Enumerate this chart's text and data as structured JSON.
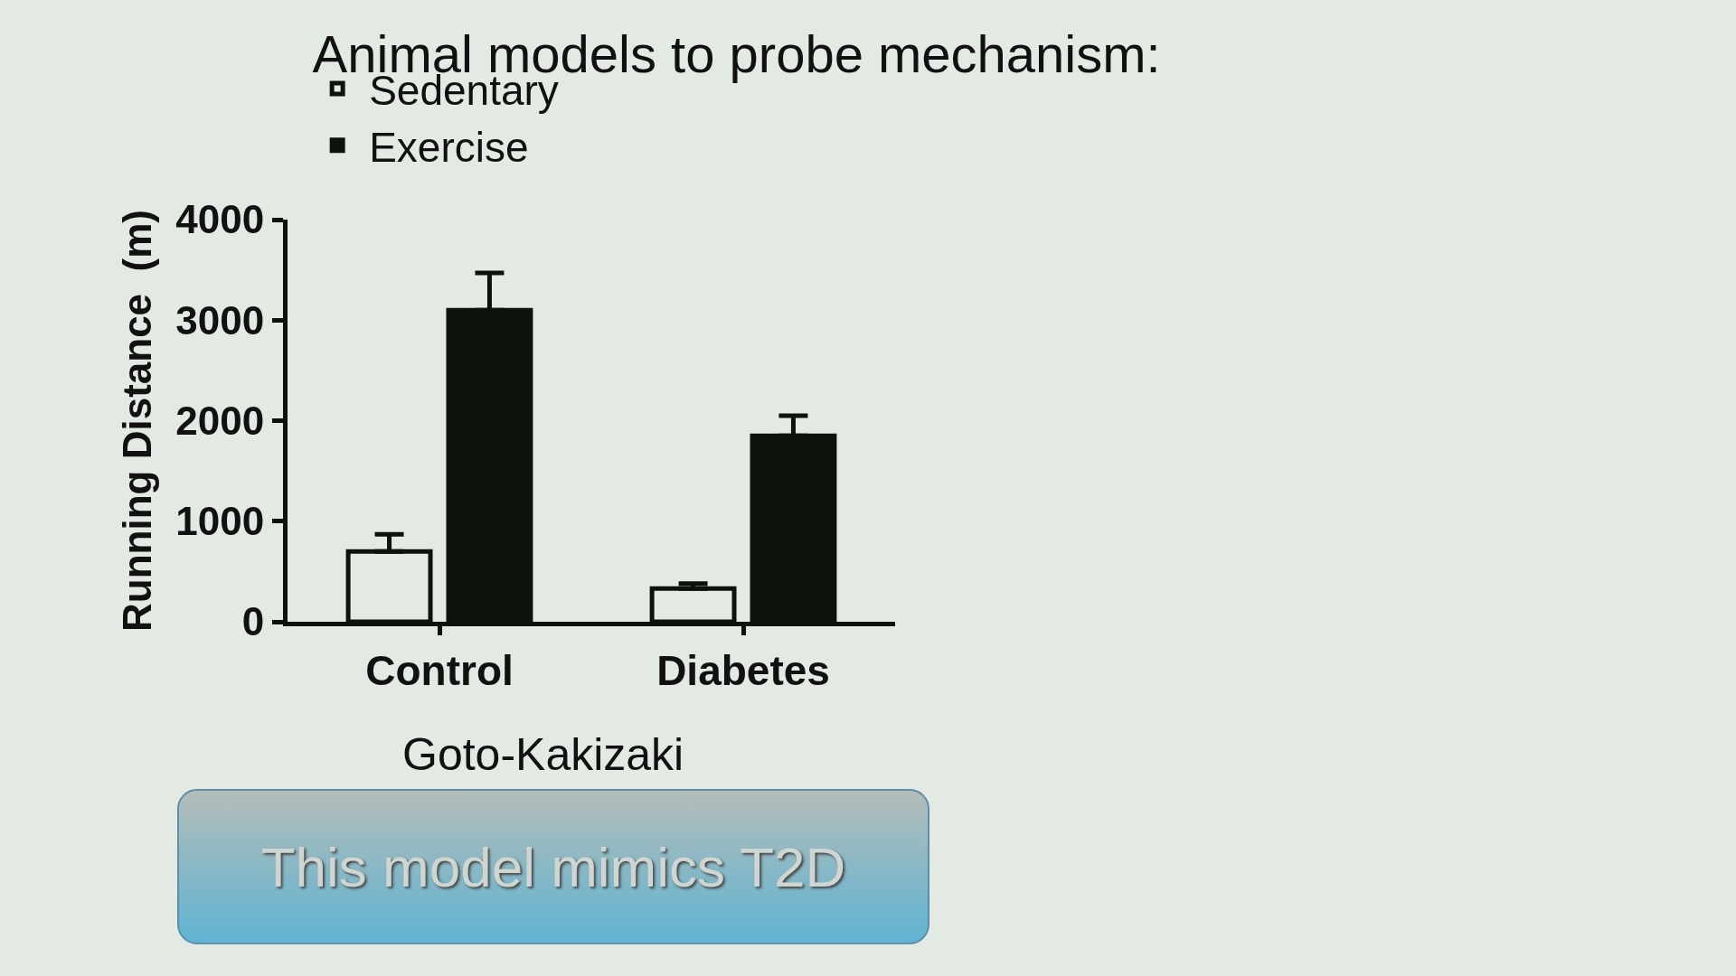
{
  "chart_data": {
    "type": "bar",
    "title": "Animal models to probe mechanism:",
    "ylabel": "Running Distance  (m)",
    "categories": [
      "Control",
      "Diabetes"
    ],
    "series": [
      {
        "name": "Sedentary",
        "color": "#e3e9e3",
        "values": [
          700,
          330
        ],
        "errors": [
          [
            700,
            870
          ],
          [
            330,
            380
          ]
        ]
      },
      {
        "name": "Exercise",
        "color": "#0d120d",
        "values": [
          3100,
          1850
        ],
        "errors": [
          [
            3100,
            3470
          ],
          [
            1850,
            2050
          ]
        ]
      }
    ],
    "ylim": [
      0,
      4000
    ],
    "yticks": [
      0,
      1000,
      2000,
      3000,
      4000
    ],
    "grid": false,
    "legend": "top left",
    "annotations": [
      "Goto-Kakizaki",
      "This model mimics T2D"
    ]
  }
}
